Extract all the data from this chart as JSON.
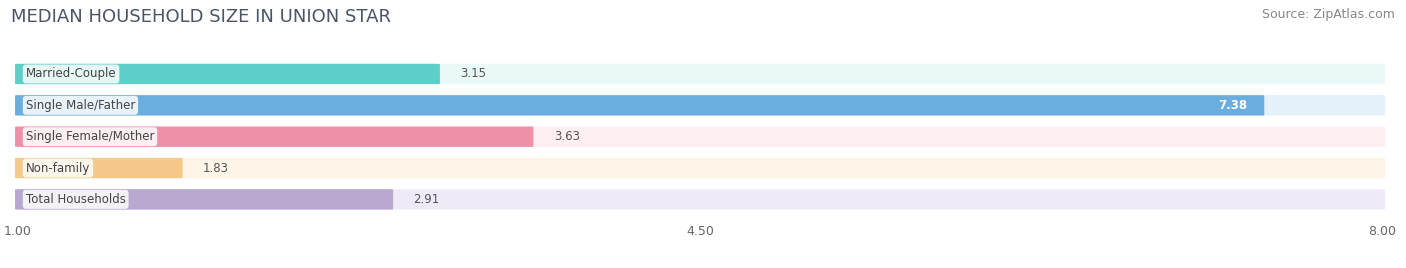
{
  "title": "MEDIAN HOUSEHOLD SIZE IN UNION STAR",
  "source": "Source: ZipAtlas.com",
  "categories": [
    "Married-Couple",
    "Single Male/Father",
    "Single Female/Mother",
    "Non-family",
    "Total Households"
  ],
  "values": [
    3.15,
    7.38,
    3.63,
    1.83,
    2.91
  ],
  "bar_colors": [
    "#5ecec8",
    "#6aaee0",
    "#f090a8",
    "#f5c98a",
    "#b8a8d0"
  ],
  "bar_bg_colors": [
    "#eaf8f7",
    "#e4f0fa",
    "#fdeef2",
    "#fdf5e8",
    "#f0eaf8"
  ],
  "label_inside_bar": [
    false,
    true,
    false,
    false,
    false
  ],
  "xmin": 1.0,
  "xmax": 8.0,
  "xticks": [
    1.0,
    4.5,
    8.0
  ],
  "background_color": "#ffffff",
  "bar_height": 0.62,
  "title_fontsize": 13,
  "source_fontsize": 9,
  "label_fontsize": 8.5,
  "value_fontsize": 8.5,
  "tick_fontsize": 9,
  "title_color": "#4a5568",
  "source_color": "#888888",
  "label_color": "#444444",
  "value_color_outside": "#555555",
  "value_color_inside": "#ffffff"
}
